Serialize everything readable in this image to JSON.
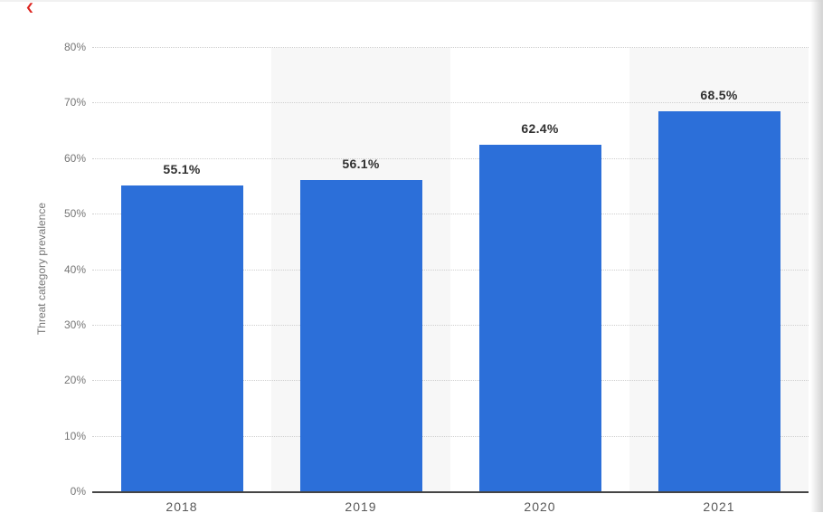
{
  "decorations": {
    "corner_mark_glyph": "❮",
    "corner_mark_color": "#dd2621"
  },
  "chart_data": {
    "type": "bar",
    "title": "",
    "categories": [
      "2018",
      "2019",
      "2020",
      "2021"
    ],
    "values": [
      55.1,
      56.1,
      62.4,
      68.5
    ],
    "data_labels": [
      "55.1%",
      "56.1%",
      "62.4%",
      "68.5%"
    ],
    "xlabel": "",
    "ylabel": "Threat category prevalence",
    "ylim": [
      0,
      80
    ],
    "y_ticks": [
      {
        "value": 0,
        "label": "0%"
      },
      {
        "value": 10,
        "label": "10%"
      },
      {
        "value": 20,
        "label": "20%"
      },
      {
        "value": 30,
        "label": "30%"
      },
      {
        "value": 40,
        "label": "40%"
      },
      {
        "value": 50,
        "label": "50%"
      },
      {
        "value": 60,
        "label": "60%"
      },
      {
        "value": 70,
        "label": "70%"
      },
      {
        "value": 80,
        "label": "80%"
      }
    ],
    "grid": "horizontal-dotted",
    "legend": "none",
    "bar_color": "#2c6fd9",
    "band_color": "#f7f7f7",
    "banded_category_indices": [
      1,
      3
    ]
  }
}
